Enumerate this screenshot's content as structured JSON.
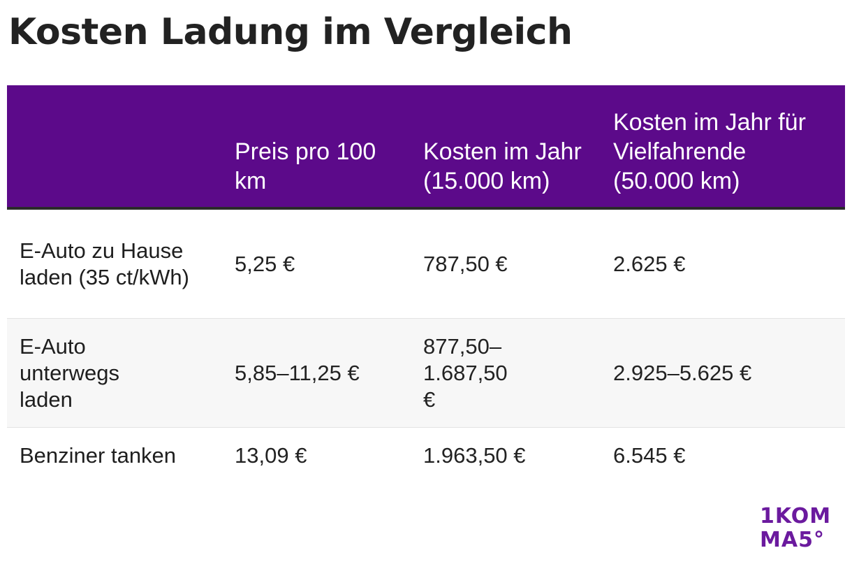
{
  "title": "Kosten Ladung im Vergleich",
  "colors": {
    "header_background": "#5c0a8a",
    "header_text": "#ffffff",
    "logo": "#6b1a9e"
  },
  "chart_data": {
    "type": "table",
    "title": "Kosten Ladung im Vergleich",
    "columns": [
      "",
      "Preis pro 100 km",
      "Kosten im Jahr (15.000 km)",
      "Kosten im Jahr für Vielfahrende (50.000 km)"
    ],
    "rows": [
      {
        "label": "E-Auto zu Hause laden (35 ct/kWh)",
        "cells": [
          "5,25 €",
          "787,50 €",
          "2.625 €"
        ]
      },
      {
        "label": "E-Auto unterwegs laden",
        "cells": [
          "5,85–11,25 €",
          "877,50–1.687,50 €",
          "2.925–5.625 €"
        ]
      },
      {
        "label": "Benziner tanken",
        "cells": [
          "13,09 €",
          "1.963,50 €",
          "6.545 €"
        ]
      }
    ]
  },
  "logo": {
    "line1": "1KOM",
    "line2": "MA5°"
  }
}
